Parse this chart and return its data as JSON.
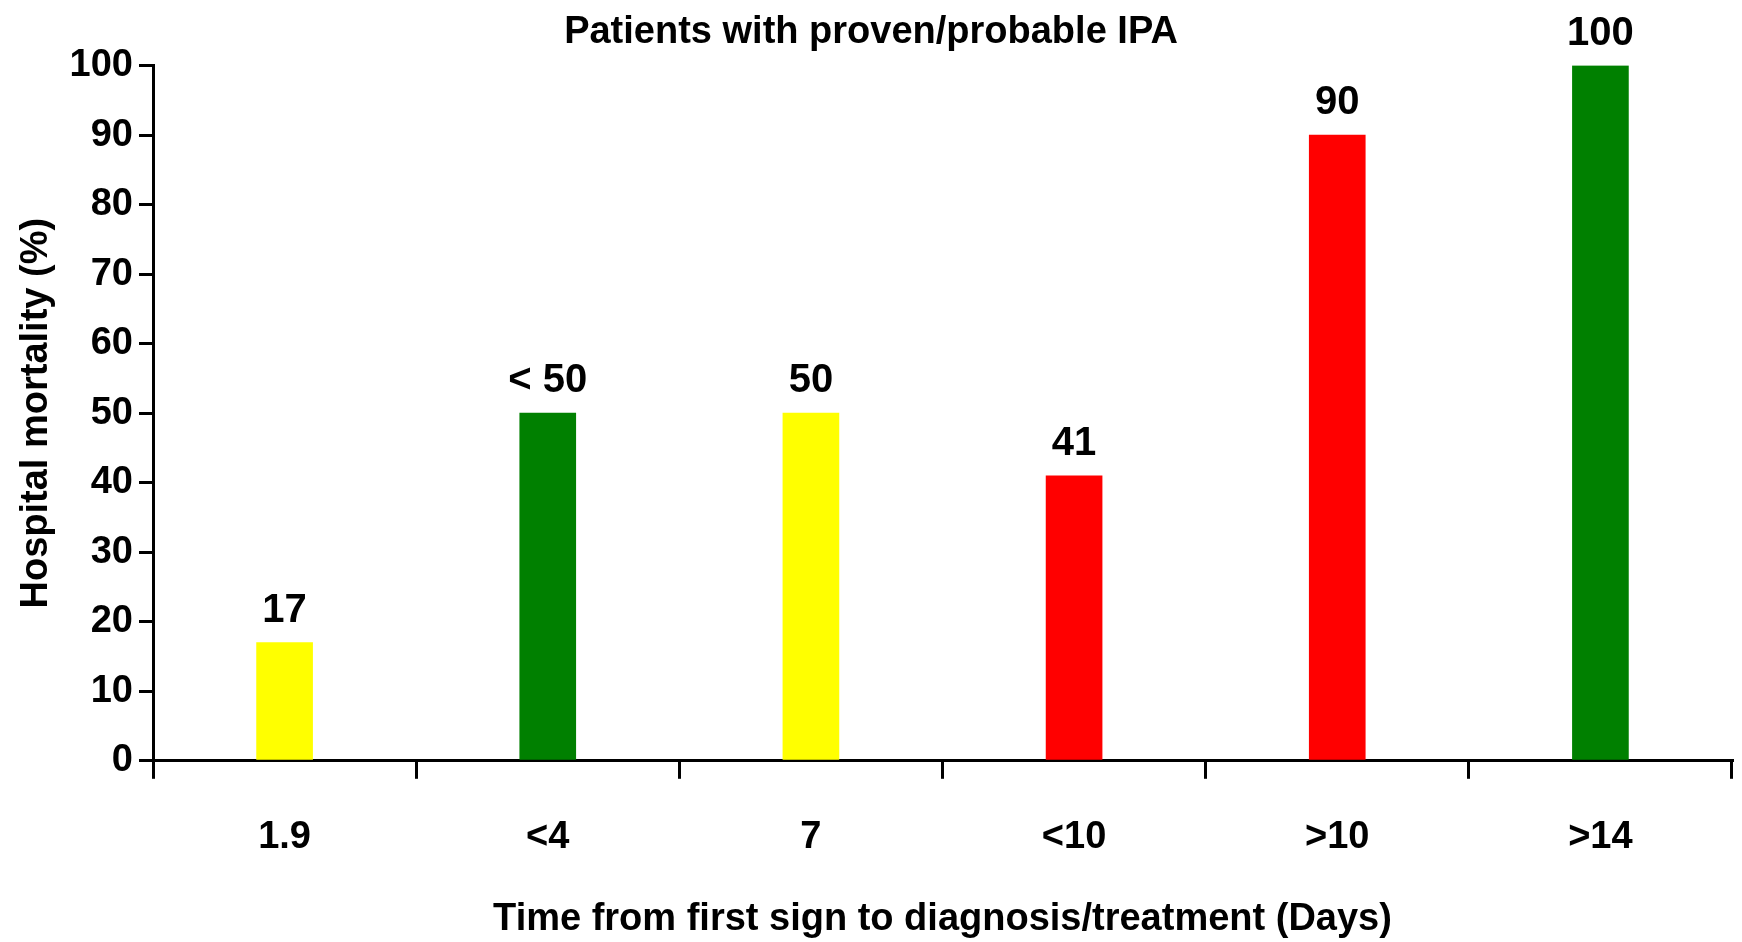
{
  "chart_data": {
    "type": "bar",
    "title": "Patients with proven/probable IPA",
    "xlabel": "Time from first sign to diagnosis/treatment (Days)",
    "ylabel": "Hospital mortality (%)",
    "categories": [
      "1.9",
      "<4",
      "7",
      "<10",
      ">10",
      ">14"
    ],
    "values": [
      17,
      50,
      50,
      41,
      90,
      100
    ],
    "colors": [
      "#ffff00",
      "#008000",
      "#ffff00",
      "#ff0000",
      "#ff0000",
      "#008000"
    ],
    "value_labels": [
      "17",
      "< 50",
      "50",
      "41",
      "90",
      "100"
    ],
    "ylim": [
      0,
      100
    ],
    "yticks": [
      0,
      10,
      20,
      30,
      40,
      50,
      60,
      70,
      80,
      90,
      100
    ],
    "grid": false,
    "legend": false
  }
}
